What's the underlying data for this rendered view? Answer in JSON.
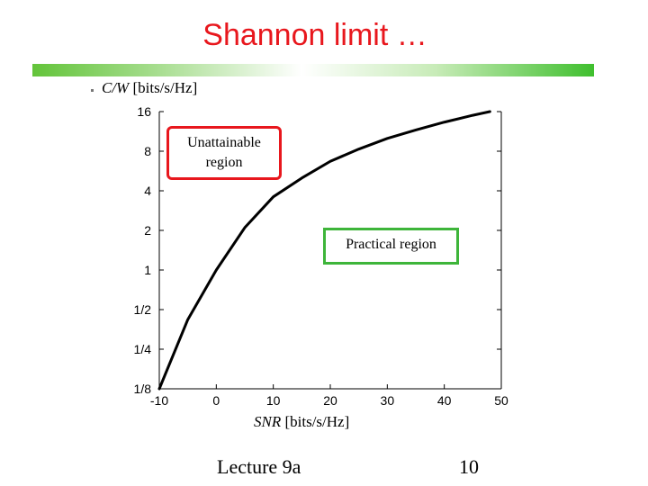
{
  "slide": {
    "title": "Shannon limit …",
    "footer_left": "Lecture 9a",
    "footer_right": "10"
  },
  "labels": {
    "y_var": "C/W",
    "y_unit": " [bits/s/Hz]",
    "x_var": "SNR",
    "x_unit": " [bits/s/Hz]"
  },
  "callouts": {
    "unattainable_line1": "Unattainable",
    "unattainable_line2": "region",
    "practical": "Practical region"
  },
  "colors": {
    "title": "#e8171d",
    "unattainable_border": "#e8171d",
    "practical_border": "#3eb53a",
    "curve": "#000000"
  },
  "chart_data": {
    "type": "line",
    "xlabel": "SNR [bits/s/Hz]",
    "ylabel": "C/W [bits/s/Hz]",
    "xlim": [
      -10,
      50
    ],
    "ylim": [
      0.125,
      16
    ],
    "y_scale": "log2",
    "x_ticks": [
      -10,
      0,
      10,
      20,
      30,
      40,
      50
    ],
    "y_ticks": [
      0.125,
      0.25,
      0.5,
      1,
      2,
      4,
      8,
      16
    ],
    "y_tick_labels": [
      "1/8",
      "1/4",
      "1/2",
      "1",
      "2",
      "4",
      "8",
      "16"
    ],
    "grid": false,
    "series": [
      {
        "x": [
          -10,
          -5,
          0,
          5,
          10,
          15,
          20,
          25,
          30,
          35,
          40,
          45,
          48
        ],
        "y": [
          0.125,
          0.42,
          1.0,
          2.1,
          3.6,
          5.0,
          6.7,
          8.3,
          10.0,
          11.6,
          13.3,
          15.0,
          16.0
        ]
      }
    ]
  }
}
